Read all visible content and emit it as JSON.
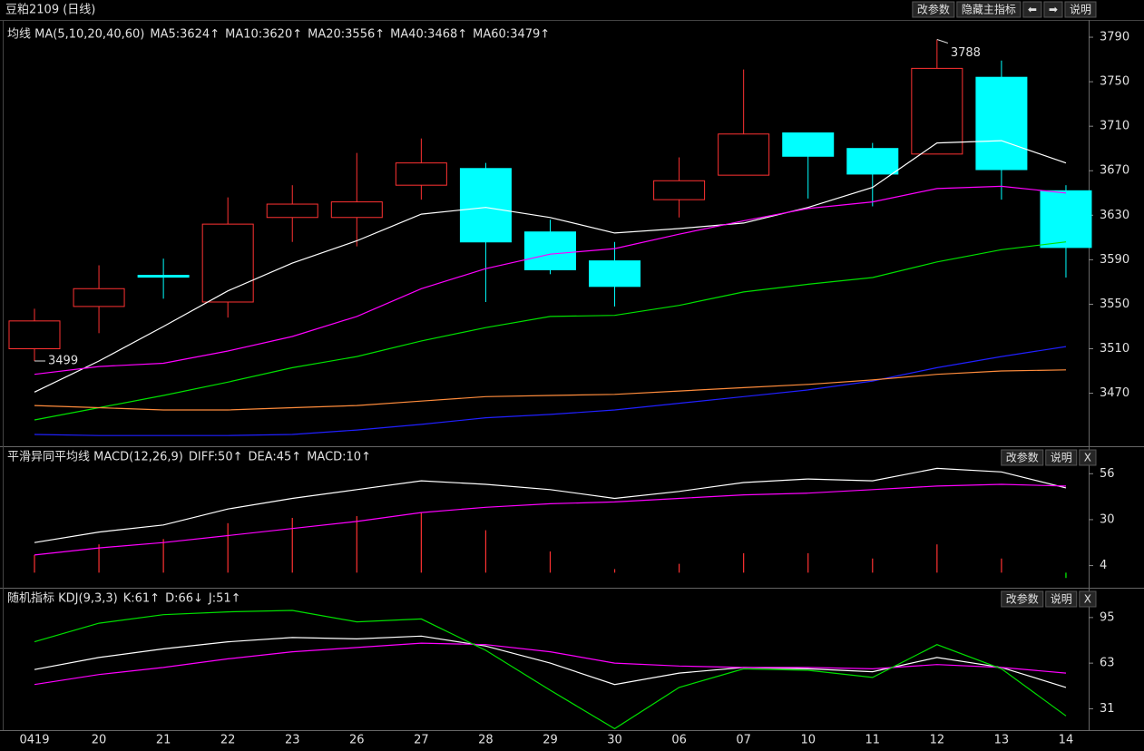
{
  "header": {
    "title": "豆粕2109 (日线)",
    "buttons": [
      "改参数",
      "隐藏主指标",
      "⬅",
      "➡",
      "说明"
    ]
  },
  "chart_data": [
    {
      "type": "candlestick",
      "title": "均线 MA(5,10,20,40,60)",
      "categories": [
        "0419",
        "20",
        "21",
        "22",
        "23",
        "26",
        "27",
        "28",
        "29",
        "30",
        "06",
        "07",
        "10",
        "11",
        "12",
        "13",
        "14"
      ],
      "open": [
        3510,
        3548,
        3576,
        3552,
        3628,
        3628,
        3657,
        3672,
        3615,
        3589,
        3644,
        3666,
        3704,
        3690,
        3685,
        3754,
        3652
      ],
      "high": [
        3546,
        3585,
        3591,
        3646,
        3657,
        3686,
        3699,
        3677,
        3626,
        3606,
        3682,
        3761,
        3704,
        3695,
        3788,
        3769,
        3657
      ],
      "low": [
        3499,
        3524,
        3555,
        3538,
        3606,
        3602,
        3644,
        3552,
        3577,
        3548,
        3628,
        3666,
        3645,
        3638,
        3685,
        3644,
        3574
      ],
      "close": [
        3535,
        3564,
        3575,
        3622,
        3640,
        3642,
        3677,
        3606,
        3581,
        3566,
        3661,
        3703,
        3683,
        3667,
        3762,
        3671,
        3601
      ],
      "up_color": "#ff3232",
      "down_color": "#00ffff",
      "annotations": [
        "3788",
        "3499"
      ],
      "series": [
        {
          "name": "MA5:3624↑",
          "color": "#ffffff",
          "values": [
            3471,
            3499,
            3530,
            3562,
            3587,
            3607,
            3631,
            3637,
            3628,
            3614,
            3618,
            3623,
            3637,
            3655,
            3695,
            3697,
            3677
          ]
        },
        {
          "name": "MA10:3620↑",
          "color": "#ff00ff",
          "values": [
            3487,
            3494,
            3497,
            3508,
            3521,
            3539,
            3564,
            3582,
            3595,
            3600,
            3613,
            3625,
            3636,
            3642,
            3654,
            3656,
            3650
          ]
        },
        {
          "name": "MA20:3556↑",
          "color": "#00e000",
          "values": [
            3446,
            3457,
            3468,
            3480,
            3493,
            3503,
            3517,
            3529,
            3539,
            3540,
            3549,
            3561,
            3568,
            3574,
            3588,
            3599,
            3606
          ]
        },
        {
          "name": "MA40:3468↑",
          "color": "#2020ff",
          "values": [
            3433,
            3432,
            3432,
            3432,
            3433,
            3437,
            3442,
            3448,
            3451,
            3455,
            3461,
            3467,
            3473,
            3481,
            3493,
            3503,
            3512
          ]
        },
        {
          "name": "MA60:3479↑",
          "color": "#ff8c3c",
          "values": [
            3459,
            3457,
            3455,
            3455,
            3457,
            3459,
            3463,
            3467,
            3468,
            3469,
            3472,
            3475,
            3478,
            3482,
            3487,
            3490,
            3491
          ]
        }
      ],
      "ylim": [
        3424,
        3799
      ],
      "yticks": [
        3470,
        3510,
        3550,
        3590,
        3630,
        3670,
        3710,
        3750,
        3790
      ]
    },
    {
      "type": "macd",
      "title": "平滑异同平均线 MACD(12,26,9)",
      "buttons": [
        "改参数",
        "说明",
        "X"
      ],
      "series": [
        {
          "name": "DIFF:50↑",
          "color": "#ffffff",
          "values": [
            17,
            23,
            27,
            36,
            42,
            47,
            52,
            50,
            47,
            42,
            46,
            51,
            53,
            52,
            59,
            57,
            48
          ]
        },
        {
          "name": "DEA:45↑",
          "color": "#ff00ff",
          "values": [
            10,
            14,
            17,
            21,
            25,
            29,
            34,
            37,
            39,
            40,
            42,
            44,
            45,
            47,
            49,
            50,
            49
          ]
        }
      ],
      "bars": {
        "name": "MACD:10↑",
        "color": "#00e000",
        "up_color": "#ff3232",
        "down_color": "#00ff00",
        "values": [
          10,
          16,
          19,
          28,
          31,
          32,
          34,
          24,
          12,
          2,
          5,
          11,
          11,
          8,
          16,
          8,
          -3
        ]
      },
      "ylim": [
        -7,
        70
      ],
      "yticks": [
        4,
        30,
        56
      ]
    },
    {
      "type": "kdj",
      "title": "随机指标 KDJ(9,3,3)",
      "buttons": [
        "改参数",
        "说明",
        "X"
      ],
      "series": [
        {
          "name": "K:61↑",
          "color": "#ffffff",
          "values": [
            58.5,
            67,
            73,
            78,
            81,
            80,
            82,
            75,
            63,
            48,
            56,
            60,
            59,
            57,
            67,
            60,
            46
          ]
        },
        {
          "name": "D:66↓",
          "color": "#ff00ff",
          "values": [
            48,
            55,
            60,
            66,
            71,
            74,
            77,
            76,
            71,
            63,
            61,
            60,
            60,
            59,
            62,
            60,
            56
          ]
        },
        {
          "name": "J:51↑",
          "color": "#00e000",
          "values": [
            78,
            91,
            97,
            99,
            100,
            92,
            94,
            72,
            44,
            17,
            46,
            59,
            58,
            53,
            76,
            59,
            26
          ]
        }
      ],
      "ylim": [
        16,
        114
      ],
      "yticks": [
        31,
        63,
        95
      ]
    }
  ]
}
